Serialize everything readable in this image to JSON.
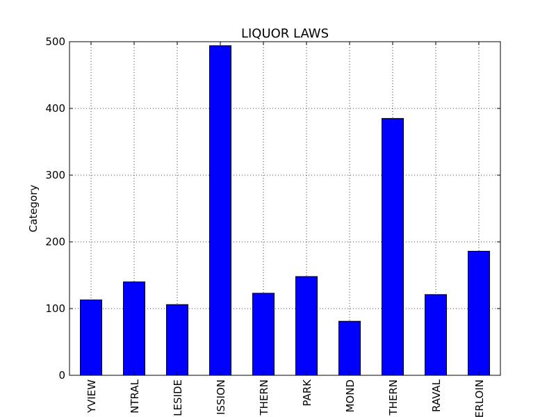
{
  "chart_data": {
    "type": "bar",
    "title": "LIQUOR LAWS",
    "xlabel": "",
    "ylabel": "Category",
    "categories": [
      "YVIEW",
      "NTRAL",
      "LESIDE",
      "ISSION",
      "THERN",
      "PARK",
      "MOND",
      "THERN",
      "RAVAL",
      "ERLOIN"
    ],
    "values": [
      113,
      140,
      106,
      494,
      123,
      148,
      81,
      385,
      121,
      186
    ],
    "ylim": [
      0,
      500
    ],
    "yticks": [
      0,
      100,
      200,
      300,
      400,
      500
    ],
    "grid": true,
    "bar_color": "#0000ff"
  }
}
